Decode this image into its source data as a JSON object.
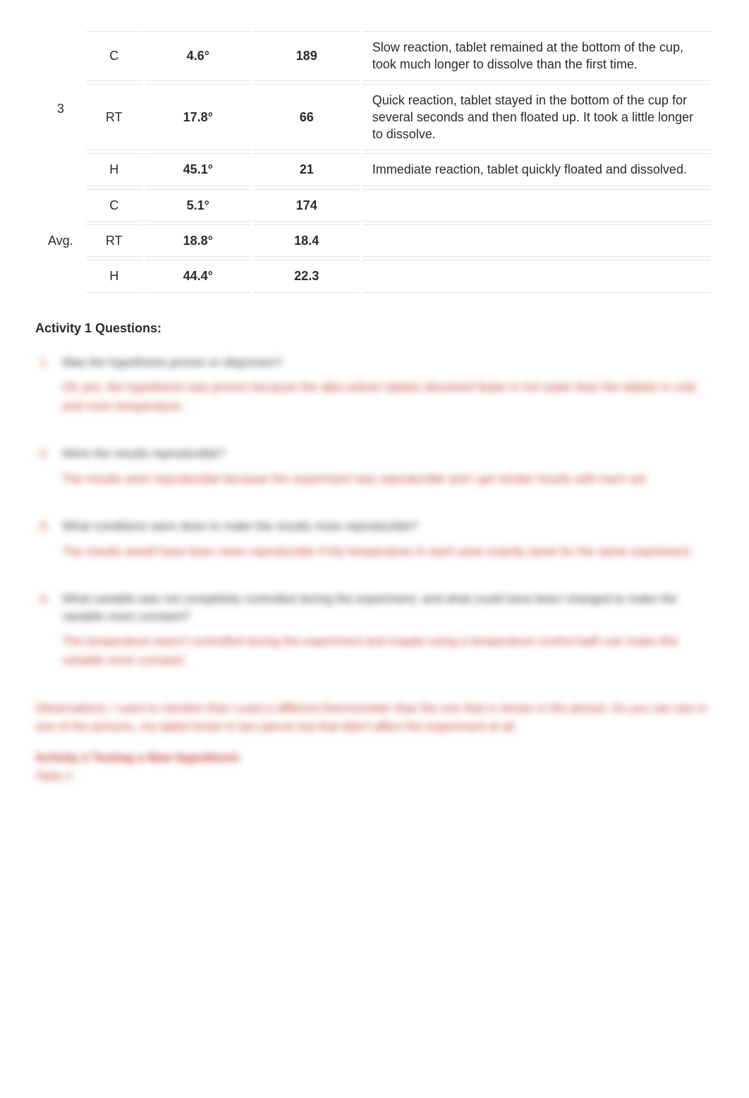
{
  "table": {
    "trial3": {
      "label": "3",
      "rows": [
        {
          "cond": "C",
          "temp": "4.6°",
          "time": "189",
          "obs": "Slow reaction, tablet remained at the bottom of the cup, took much longer to dissolve than the first time."
        },
        {
          "cond": "RT",
          "temp": "17.8°",
          "time": "66",
          "obs": "Quick reaction, tablet stayed in the bottom of the cup for several seconds and then floated up. It took a little longer to dissolve."
        },
        {
          "cond": "H",
          "temp": "45.1°",
          "time": "21",
          "obs": "Immediate reaction, tablet quickly floated and dissolved."
        }
      ]
    },
    "avg": {
      "label": "Avg.",
      "rows": [
        {
          "cond": "C",
          "temp": "5.1°",
          "time": "174",
          "obs": ""
        },
        {
          "cond": "RT",
          "temp": "18.8°",
          "time": "18.4",
          "obs": ""
        },
        {
          "cond": "H",
          "temp": "44.4°",
          "time": "22.3",
          "obs": ""
        }
      ]
    }
  },
  "section_heading": "Activity 1 Questions:",
  "questions": [
    {
      "num": "1",
      "prompt": "Was the hypothesis proven or disproven?",
      "answer": "Oh yes, the hypothesis was proven because the alka-seltzer tablets dissolved faster in hot water than the tablets in cold and room temperature."
    },
    {
      "num": "2",
      "prompt": "Were the results reproducible?",
      "answer": "The results were reproducible because the experiment was reproducible and I got similar results with each set."
    },
    {
      "num": "3",
      "prompt": "What conditions were done to make the results more reproducible?",
      "answer": "The results would have been more reproducible if the temperature in each were exactly same for the same experiment."
    },
    {
      "num": "4",
      "prompt": "What variable was not completely controlled during the experiment, and what could have been changed to make the variable more constant?",
      "answer": "The temperature wasn't controlled during the experiment and maybe using a temperature control bath can make this variable more constant."
    }
  ],
  "observations_para": "Observations: I want to mention that I used a different thermometer than the one that is shown in the picture. As you can see in one of the pictures, my tablet broke in two pieces but that didn't affect the experiment at all.",
  "activity2_title": "Activity 2 Testing a New Hypothesis",
  "table2_label": "Table 2"
}
